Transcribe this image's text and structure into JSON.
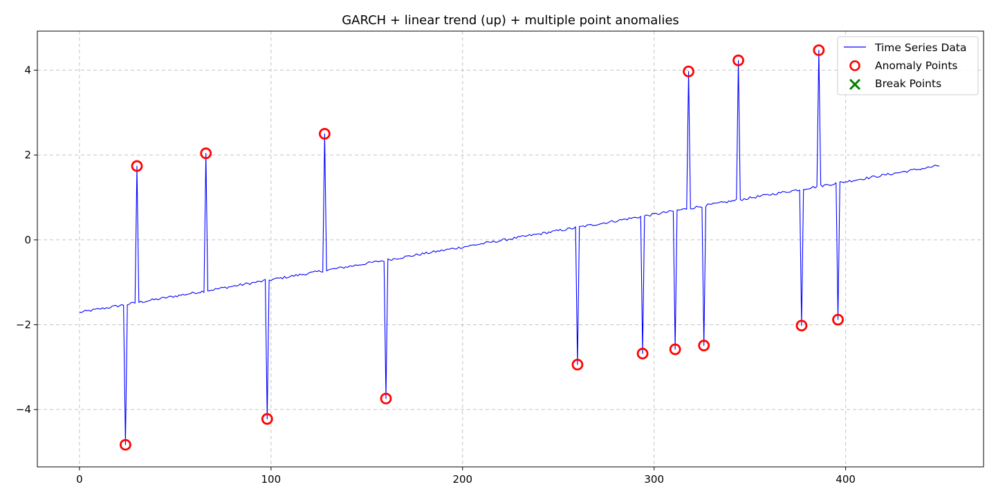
{
  "chart_data": {
    "type": "line",
    "title": "GARCH + linear trend (up) + multiple point anomalies",
    "xlabel": "",
    "ylabel": "",
    "xlim": [
      -22,
      472
    ],
    "ylim": [
      -5.35,
      4.92
    ],
    "xticks": [
      0,
      100,
      200,
      300,
      400
    ],
    "yticks": [
      -4,
      -2,
      0,
      2,
      4
    ],
    "grid": true,
    "legend_position": "top-right",
    "colors": {
      "line": "#0000ff",
      "anomaly": "#ff0000",
      "break": "#008000"
    },
    "trend": {
      "start_x": 0,
      "start_y": -1.71,
      "end_x": 449,
      "end_y": 1.75
    },
    "series": [
      {
        "name": "Time Series Data",
        "kind": "line",
        "x_range": [
          0,
          449
        ]
      },
      {
        "name": "Anomaly Points",
        "kind": "scatter",
        "points": [
          {
            "x": 24,
            "y": -4.83
          },
          {
            "x": 30,
            "y": 1.74
          },
          {
            "x": 66,
            "y": 2.04
          },
          {
            "x": 98,
            "y": -4.22
          },
          {
            "x": 128,
            "y": 2.5
          },
          {
            "x": 160,
            "y": -3.74
          },
          {
            "x": 260,
            "y": -2.94
          },
          {
            "x": 294,
            "y": -2.68
          },
          {
            "x": 311,
            "y": -2.58
          },
          {
            "x": 318,
            "y": 3.97
          },
          {
            "x": 326,
            "y": -2.49
          },
          {
            "x": 344,
            "y": 4.23
          },
          {
            "x": 377,
            "y": -2.02
          },
          {
            "x": 386,
            "y": 4.47
          },
          {
            "x": 396,
            "y": -1.88
          }
        ]
      },
      {
        "name": "Break Points",
        "kind": "scatter",
        "points": []
      }
    ]
  }
}
